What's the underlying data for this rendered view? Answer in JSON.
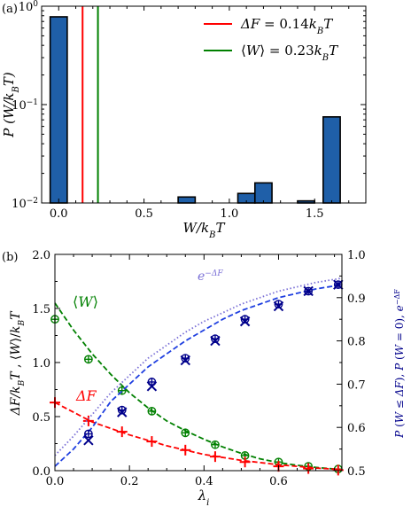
{
  "chart_data": [
    {
      "panel_label": "(a)",
      "type": "bar",
      "xlabel": "W/k_BT",
      "ylabel": "P(W/k_BT)",
      "yscale": "log",
      "xlim": [
        -0.1,
        1.8
      ],
      "ylim": [
        0.01,
        1
      ],
      "xticks": [
        "0.0",
        "0.5",
        "1.0",
        "1.5"
      ],
      "xtick_values": [
        0,
        0.5,
        1.0,
        1.5
      ],
      "yticks": [
        "10^{-2}",
        "10^{-1}",
        "10^{0}"
      ],
      "ytick_values": [
        0.01,
        0.1,
        1
      ],
      "bar_width": 0.1,
      "bars": [
        {
          "x": 0.0,
          "value": 0.78
        },
        {
          "x": 0.75,
          "value": 0.0115
        },
        {
          "x": 1.1,
          "value": 0.0125
        },
        {
          "x": 1.2,
          "value": 0.016
        },
        {
          "x": 1.45,
          "value": 0.0105
        },
        {
          "x": 1.6,
          "value": 0.075
        }
      ],
      "vlines": [
        {
          "x": 0.14,
          "color": "#ff0000",
          "legend": "ΔF = 0.14k_BT"
        },
        {
          "x": 0.23,
          "color": "#008000",
          "legend": "⟨W⟩ = 0.23k_BT"
        }
      ],
      "bar_color": "#1f5fa8",
      "legend_position": "top-right"
    },
    {
      "panel_label": "(b)",
      "type": "line",
      "xlabel": "λ_i",
      "ylabel": "ΔF/k_BT , ⟨W⟩/k_BT",
      "ylabel_right": "P(W ≤ ΔF), P(W = 0), e^{−ΔF}",
      "xlim": [
        0,
        0.77
      ],
      "ylim": [
        0,
        2.0
      ],
      "ylim_right": [
        0.5,
        1.0
      ],
      "xticks": [
        "0.0",
        "0.2",
        "0.4",
        "0.6"
      ],
      "xtick_values": [
        0,
        0.2,
        0.4,
        0.6
      ],
      "yticks_left": [
        "0.0",
        "0.5",
        "1.0",
        "1.5",
        "2.0"
      ],
      "ytick_left_values": [
        0,
        0.5,
        1.0,
        1.5,
        2.0
      ],
      "yticks_right": [
        "0.5",
        "0.6",
        "0.7",
        "0.8",
        "0.9",
        "1.0"
      ],
      "ytick_right_values": [
        0.5,
        0.6,
        0.7,
        0.8,
        0.9,
        1.0
      ],
      "annotations": [
        {
          "text": "⟨W⟩",
          "color": "#008000"
        },
        {
          "text": "ΔF",
          "color": "#ff0000"
        },
        {
          "text": "e^{−ΔF}",
          "color": "#7a6fd6"
        }
      ],
      "series": [
        {
          "kind": "dashed_curve",
          "axis": "left",
          "color": "#008000",
          "x": [
            0,
            0.05,
            0.1,
            0.15,
            0.2,
            0.25,
            0.3,
            0.35,
            0.4,
            0.45,
            0.5,
            0.55,
            0.6,
            0.65,
            0.7,
            0.77
          ],
          "y": [
            1.55,
            1.3,
            1.08,
            0.89,
            0.72,
            0.58,
            0.46,
            0.37,
            0.29,
            0.22,
            0.16,
            0.11,
            0.075,
            0.05,
            0.03,
            0.01
          ]
        },
        {
          "kind": "markers_circle_plus",
          "axis": "left",
          "color": "#008000",
          "x": [
            0,
            0.09,
            0.18,
            0.26,
            0.35,
            0.43,
            0.51,
            0.6,
            0.68,
            0.76
          ],
          "y": [
            1.4,
            1.03,
            0.74,
            0.55,
            0.35,
            0.24,
            0.14,
            0.08,
            0.04,
            0.015
          ]
        },
        {
          "kind": "dashed_curve",
          "axis": "left",
          "color": "#ff0000",
          "x": [
            0,
            0.1,
            0.2,
            0.3,
            0.4,
            0.5,
            0.6,
            0.7,
            0.77
          ],
          "y": [
            0.63,
            0.45,
            0.33,
            0.23,
            0.15,
            0.095,
            0.055,
            0.025,
            0.01
          ]
        },
        {
          "kind": "markers_plus",
          "axis": "left",
          "color": "#ff0000",
          "x": [
            0,
            0.09,
            0.18,
            0.26,
            0.35,
            0.43,
            0.51,
            0.6,
            0.68,
            0.76
          ],
          "y": [
            0.63,
            0.46,
            0.36,
            0.27,
            0.19,
            0.13,
            0.08,
            0.04,
            0.02,
            0.005
          ]
        },
        {
          "kind": "dotted_curve",
          "axis": "right",
          "color": "#7a6fd6",
          "x": [
            0,
            0.05,
            0.1,
            0.15,
            0.2,
            0.25,
            0.3,
            0.35,
            0.4,
            0.45,
            0.5,
            0.55,
            0.6,
            0.65,
            0.7,
            0.77
          ],
          "y": [
            0.535,
            0.58,
            0.63,
            0.68,
            0.72,
            0.76,
            0.79,
            0.82,
            0.845,
            0.865,
            0.885,
            0.9,
            0.915,
            0.925,
            0.935,
            0.945
          ]
        },
        {
          "kind": "dashed_curve",
          "axis": "right",
          "color": "#1f3fe0",
          "x": [
            0,
            0.05,
            0.1,
            0.15,
            0.2,
            0.25,
            0.3,
            0.35,
            0.4,
            0.45,
            0.5,
            0.55,
            0.6,
            0.65,
            0.7,
            0.77
          ],
          "y": [
            0.51,
            0.55,
            0.6,
            0.66,
            0.7,
            0.74,
            0.77,
            0.8,
            0.825,
            0.85,
            0.87,
            0.885,
            0.9,
            0.91,
            0.92,
            0.93
          ]
        },
        {
          "kind": "markers_circle_plus",
          "axis": "right",
          "color": "#00008b",
          "x": [
            0.09,
            0.18,
            0.26,
            0.35,
            0.43,
            0.51,
            0.6,
            0.68,
            0.76
          ],
          "y": [
            0.585,
            0.64,
            0.705,
            0.76,
            0.805,
            0.85,
            0.885,
            0.915,
            0.93
          ]
        },
        {
          "kind": "markers_x",
          "axis": "right",
          "color": "#00008b",
          "x": [
            0.09,
            0.18,
            0.26,
            0.35,
            0.43,
            0.51,
            0.6,
            0.68,
            0.76
          ],
          "y": [
            0.57,
            0.635,
            0.695,
            0.755,
            0.8,
            0.845,
            0.88,
            0.915,
            0.93
          ]
        }
      ]
    }
  ]
}
